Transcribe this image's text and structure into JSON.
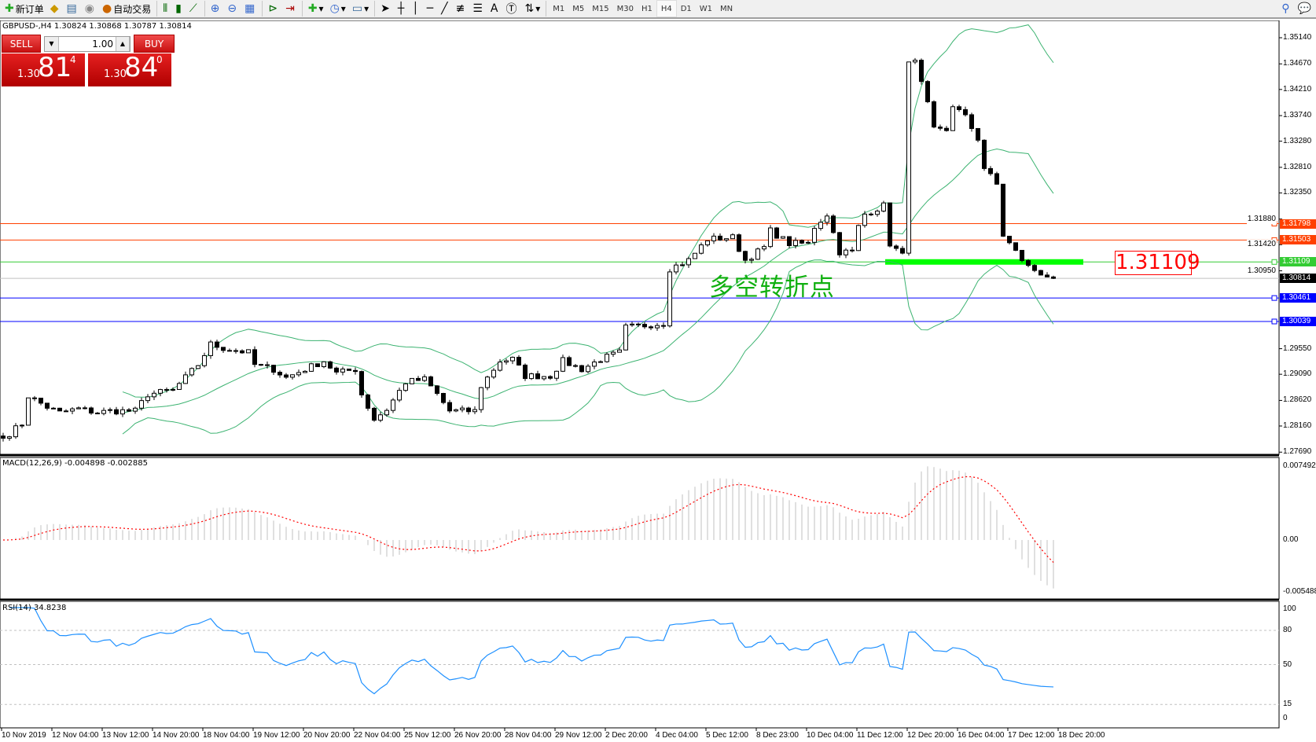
{
  "toolbar": {
    "new_order": "新订单",
    "auto_trading": "自动交易",
    "timeframes": [
      "M1",
      "M5",
      "M15",
      "M30",
      "H1",
      "H4",
      "D1",
      "W1",
      "MN"
    ],
    "active_timeframe": "H4",
    "icons": [
      "new-order-icon",
      "market-watch-icon",
      "navigator-icon",
      "signals-icon",
      "auto-trading-icon",
      "bar-chart-icon",
      "candlestick-icon",
      "line-chart-icon",
      "zoom-in-icon",
      "zoom-out-icon",
      "tile-windows-icon",
      "autoscroll-icon",
      "chart-shift-icon",
      "indicators-icon",
      "periods-icon",
      "templates-icon",
      "cursor-icon",
      "crosshair-icon",
      "vertical-line-icon",
      "horizontal-line-icon",
      "trendline-icon",
      "fibonacci-icon",
      "fibo-fan-icon",
      "text-icon",
      "text-label-icon",
      "arrows-icon",
      "search-icon",
      "chat-icon"
    ]
  },
  "chart": {
    "symbol_line": "GBPUSD-,H4  1.30824 1.30868 1.30787 1.30814",
    "trade_panel": {
      "sell": "SELL",
      "buy": "BUY",
      "lot": "1.00",
      "sell_prefix": "1.30",
      "sell_big": "81",
      "sell_sup": "4",
      "buy_prefix": "1.30",
      "buy_big": "84",
      "buy_sup": "0"
    },
    "annotation": "多空转折点",
    "big_price_label": "1.31109",
    "price_axis": [
      "1.35140",
      "1.34670",
      "1.34210",
      "1.33740",
      "1.33280",
      "1.32810",
      "1.32350",
      "1.31880",
      "1.31420",
      "1.30950",
      "1.29550",
      "1.29090",
      "1.28620",
      "1.28160",
      "1.27690"
    ],
    "levels": [
      {
        "price": "1.31798",
        "color": "#ff4000"
      },
      {
        "price": "1.31503",
        "color": "#ff4000"
      },
      {
        "price": "1.31109",
        "color": "#33cc33"
      },
      {
        "price": "1.30814",
        "color": "#000000",
        "line": "#c0c0c0"
      },
      {
        "price": "1.30461",
        "color": "#0000ff"
      },
      {
        "price": "1.30039",
        "color": "#0000ff"
      }
    ],
    "macd": {
      "label": "MACD(12,26,9) -0.004898 -0.002885",
      "axis": [
        "0.007492",
        "0.00",
        "-0.005488"
      ]
    },
    "rsi": {
      "label": "RSI(14) 34.8238",
      "axis": [
        "100",
        "80",
        "50",
        "15",
        "0"
      ]
    },
    "time_axis": [
      "10 Nov 2019",
      "12 Nov 04:00",
      "13 Nov 12:00",
      "14 Nov 20:00",
      "18 Nov 04:00",
      "19 Nov 12:00",
      "20 Nov 20:00",
      "22 Nov 04:00",
      "25 Nov 12:00",
      "26 Nov 20:00",
      "28 Nov 04:00",
      "29 Nov 12:00",
      "2 Dec 20:00",
      "4 Dec 04:00",
      "5 Dec 12:00",
      "8 Dec 23:00",
      "10 Dec 04:00",
      "11 Dec 12:00",
      "12 Dec 20:00",
      "16 Dec 04:00",
      "17 Dec 12:00",
      "18 Dec 20:00"
    ]
  },
  "chart_data": {
    "type": "candlestick",
    "close_path": [
      [
        0,
        1.2794
      ],
      [
        3,
        1.282
      ],
      [
        4,
        1.287
      ],
      [
        7,
        1.285
      ],
      [
        9,
        1.284
      ],
      [
        12,
        1.2847
      ],
      [
        15,
        1.284
      ],
      [
        17,
        1.2843
      ],
      [
        21,
        1.2843
      ],
      [
        23,
        1.2873
      ],
      [
        27,
        1.288
      ],
      [
        29,
        1.2903
      ],
      [
        31,
        1.2926
      ],
      [
        33,
        1.2963
      ],
      [
        35,
        1.2956
      ],
      [
        39,
        1.2948
      ],
      [
        40,
        1.2926
      ],
      [
        43,
        1.2918
      ],
      [
        45,
        1.2903
      ],
      [
        48,
        1.2918
      ],
      [
        51,
        1.2933
      ],
      [
        53,
        1.2911
      ],
      [
        56,
        1.2918
      ],
      [
        57,
        1.2873
      ],
      [
        59,
        1.2828
      ],
      [
        61,
        1.2846
      ],
      [
        64,
        1.2895
      ],
      [
        67,
        1.29
      ],
      [
        69,
        1.2873
      ],
      [
        71,
        1.2843
      ],
      [
        75,
        1.2843
      ],
      [
        76,
        1.2888
      ],
      [
        79,
        1.2933
      ],
      [
        81,
        1.2936
      ],
      [
        83,
        1.2906
      ],
      [
        87,
        1.2906
      ],
      [
        89,
        1.2933
      ],
      [
        92,
        1.2918
      ],
      [
        95,
        1.2936
      ],
      [
        98,
        1.2948
      ],
      [
        99,
        1.2993
      ],
      [
        105,
        1.3001
      ],
      [
        106,
        1.3099
      ],
      [
        109,
        1.3114
      ],
      [
        112,
        1.3152
      ],
      [
        116,
        1.3155
      ],
      [
        118,
        1.3114
      ],
      [
        121,
        1.3137
      ],
      [
        122,
        1.3167
      ],
      [
        125,
        1.3144
      ],
      [
        128,
        1.3144
      ],
      [
        129,
        1.3174
      ],
      [
        131,
        1.3197
      ],
      [
        133,
        1.3129
      ],
      [
        135,
        1.3129
      ],
      [
        136,
        1.3174
      ],
      [
        137,
        1.3197
      ],
      [
        140,
        1.3212
      ],
      [
        141,
        1.3144
      ],
      [
        143,
        1.3122
      ],
      [
        144,
        1.3476
      ],
      [
        145,
        1.3469
      ],
      [
        147,
        1.3393
      ],
      [
        148,
        1.3348
      ],
      [
        150,
        1.3348
      ],
      [
        151,
        1.3393
      ],
      [
        153,
        1.3371
      ],
      [
        155,
        1.3333
      ],
      [
        156,
        1.328
      ],
      [
        158,
        1.325
      ],
      [
        159,
        1.3159
      ],
      [
        161,
        1.3129
      ],
      [
        163,
        1.3102
      ],
      [
        165,
        1.3091
      ],
      [
        167,
        1.30814
      ]
    ],
    "indicators": [
      "Bollinger Bands",
      "MACD(12,26,9)",
      "RSI(14)"
    ],
    "colors": {
      "bands": "#3cb371",
      "macd_hist": "#c0c0c0",
      "macd_signal": "#ff0000",
      "rsi": "#1e90ff"
    }
  }
}
